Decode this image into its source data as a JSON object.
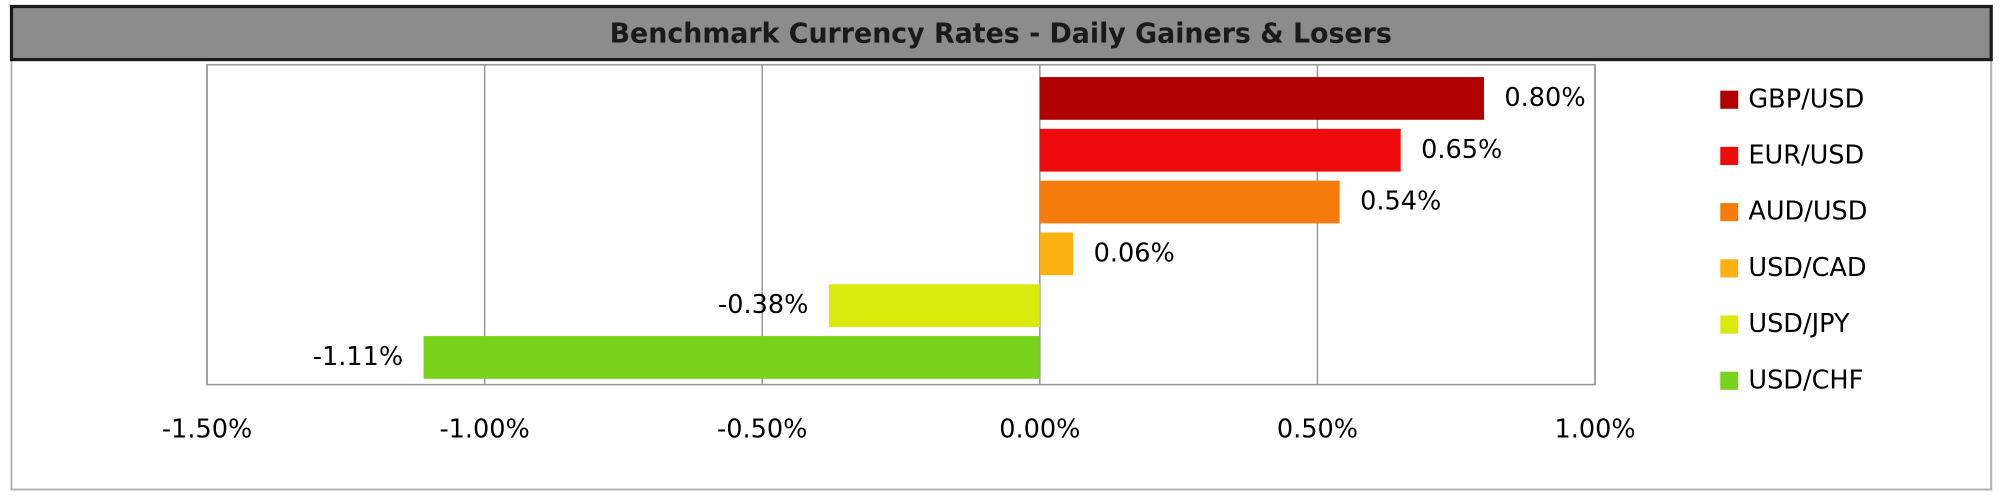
{
  "chart_data": {
    "type": "bar",
    "orientation": "horizontal",
    "title": "Benchmark Currency Rates - Daily Gainers & Losers",
    "series": [
      {
        "name": "GBP/USD",
        "color": "#b00000",
        "values": [
          0.8
        ],
        "value_labels": [
          "0.80%"
        ]
      },
      {
        "name": "EUR/USD",
        "color": "#ee0b0b",
        "values": [
          0.65
        ],
        "value_labels": [
          "0.65%"
        ]
      },
      {
        "name": "AUD/USD",
        "color": "#f57c0a",
        "values": [
          0.54
        ],
        "value_labels": [
          "0.54%"
        ]
      },
      {
        "name": "USD/CAD",
        "color": "#fbb10f",
        "values": [
          0.06
        ],
        "value_labels": [
          "0.06%"
        ]
      },
      {
        "name": "USD/JPY",
        "color": "#d9ea0c",
        "values": [
          -0.38
        ],
        "value_labels": [
          "-0.38%"
        ]
      },
      {
        "name": "USD/CHF",
        "color": "#79d21b",
        "values": [
          -1.11
        ],
        "value_labels": [
          "-1.11%"
        ]
      }
    ],
    "xlim": [
      -1.5,
      1.0
    ],
    "xticks": [
      {
        "value": -1.5,
        "label": "-1.50%"
      },
      {
        "value": -1.0,
        "label": "-1.00%"
      },
      {
        "value": -0.5,
        "label": "-0.50%"
      },
      {
        "value": 0,
        "label": "0.00%"
      },
      {
        "value": 0.5,
        "label": "0.50%"
      },
      {
        "value": 1.0,
        "label": "1.00%"
      }
    ],
    "grid": true,
    "legend": "right"
  }
}
